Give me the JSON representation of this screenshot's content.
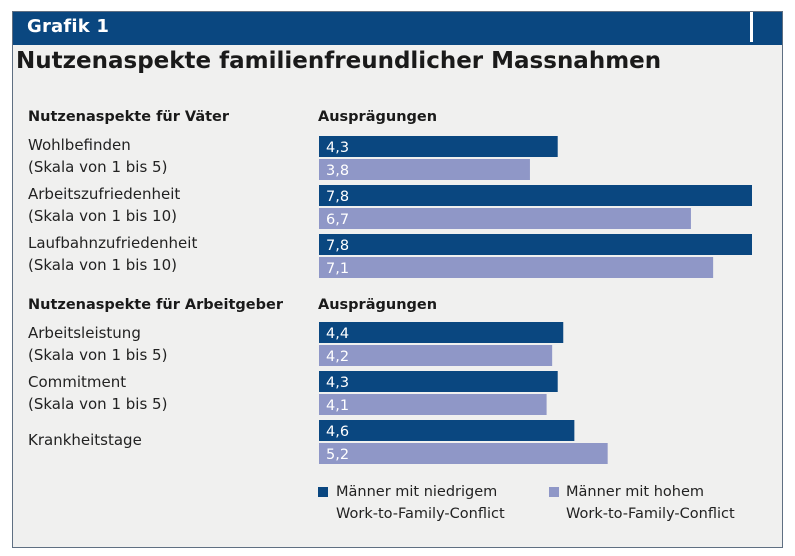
{
  "header": {
    "label": "Grafik 1"
  },
  "chart_data": {
    "type": "bar",
    "orientation": "horizontal",
    "title": "Nutzenaspekte familienfreundlicher Massnahmen",
    "series": [
      {
        "name": "Männer mit niedrigem Work-to-Family-Conflict",
        "color": "#0a4780"
      },
      {
        "name": "Männer mit hohem Work-to-Family-Conflict",
        "color": "#8f97c7"
      }
    ],
    "sections": [
      {
        "heading": "Nutzenaspekte für Väter",
        "value_heading": "Ausprägungen",
        "rows": [
          {
            "label": "Wohlbefinden",
            "sublabel": "(Skala von 1 bis 5)",
            "values": [
              4.3,
              3.8
            ],
            "value_labels": [
              "4,3",
              "3,8"
            ]
          },
          {
            "label": "Arbeitszufriedenheit",
            "sublabel": "(Skala von 1 bis 10)",
            "values": [
              7.8,
              6.7
            ],
            "value_labels": [
              "7,8",
              "6,7"
            ]
          },
          {
            "label": "Laufbahnzufriedenheit",
            "sublabel": "(Skala von 1 bis 10)",
            "values": [
              7.8,
              7.1
            ],
            "value_labels": [
              "7,8",
              "7,1"
            ]
          }
        ]
      },
      {
        "heading": "Nutzenaspekte für Arbeitgeber",
        "value_heading": "Ausprägungen",
        "rows": [
          {
            "label": "Arbeitsleistung",
            "sublabel": "(Skala von 1 bis 5)",
            "values": [
              4.4,
              4.2
            ],
            "value_labels": [
              "4,4",
              "4,2"
            ]
          },
          {
            "label": "Commitment",
            "sublabel": "(Skala von 1 bis 5)",
            "values": [
              4.3,
              4.1
            ],
            "value_labels": [
              "4,3",
              "4,1"
            ]
          },
          {
            "label": "Krankheitstage",
            "sublabel": "",
            "values": [
              4.6,
              5.2
            ],
            "value_labels": [
              "4,6",
              "5,2"
            ]
          }
        ]
      }
    ],
    "xlim": [
      0,
      7.8
    ]
  },
  "legend": {
    "items": [
      {
        "line1": "Männer mit niedrigem",
        "line2": "Work-to-Family-Conflict"
      },
      {
        "line1": "Männer mit hohem",
        "line2": "Work-to-Family-Conflict"
      }
    ]
  }
}
